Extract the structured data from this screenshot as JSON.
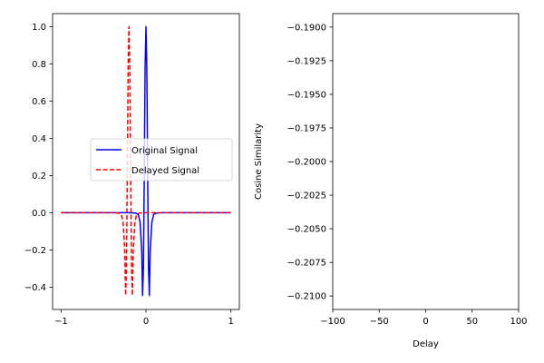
{
  "chart_data": [
    {
      "type": "line",
      "title": "",
      "xlabel": "",
      "ylabel": "",
      "xlim": [
        -1.1,
        1.1
      ],
      "ylim": [
        -0.52,
        1.07
      ],
      "xticks": [
        -1,
        0,
        1
      ],
      "xtick_labels": [
        "−1",
        "0",
        "1"
      ],
      "yticks": [
        -0.4,
        -0.2,
        0.0,
        0.2,
        0.4,
        0.6,
        0.8,
        1.0
      ],
      "ytick_labels": [
        "−0.4",
        "−0.2",
        "0.0",
        "0.2",
        "0.4",
        "0.6",
        "0.8",
        "1.0"
      ],
      "legend": {
        "location": "center-right"
      },
      "series": [
        {
          "name": "Original Signal",
          "color": "#0000ff",
          "linestyle": "solid",
          "x": [
            -1.0,
            -0.2,
            -0.12,
            -0.09,
            -0.07,
            -0.05,
            -0.04,
            -0.03,
            -0.02,
            -0.01,
            0.0,
            0.01,
            0.02,
            0.03,
            0.04,
            0.05,
            0.07,
            0.09,
            0.12,
            0.2,
            1.0
          ],
          "y": [
            0.0,
            0.0,
            -0.002,
            -0.01,
            -0.05,
            -0.2,
            -0.445,
            -0.3,
            0.2,
            0.78,
            1.0,
            0.78,
            0.2,
            -0.3,
            -0.445,
            -0.2,
            -0.05,
            -0.01,
            -0.002,
            0.0,
            0.0
          ]
        },
        {
          "name": "Delayed Signal",
          "color": "#ff0000",
          "linestyle": "dashed",
          "x": [
            -1.0,
            -0.4,
            -0.32,
            -0.29,
            -0.27,
            -0.25,
            -0.24,
            -0.23,
            -0.22,
            -0.21,
            -0.2,
            -0.19,
            -0.18,
            -0.17,
            -0.16,
            -0.15,
            -0.13,
            -0.11,
            -0.08,
            0.0,
            1.0
          ],
          "y": [
            0.0,
            0.0,
            -0.002,
            -0.01,
            -0.05,
            -0.2,
            -0.445,
            -0.3,
            0.2,
            0.78,
            1.0,
            0.78,
            0.2,
            -0.3,
            -0.445,
            -0.2,
            -0.05,
            -0.01,
            -0.002,
            0.0,
            0.0
          ]
        }
      ]
    },
    {
      "type": "line",
      "title": "",
      "xlabel": "Delay",
      "ylabel": "Cosine Similarity",
      "xlim": [
        -100,
        100
      ],
      "ylim": [
        -0.211,
        -0.189
      ],
      "xticks": [
        -100,
        -50,
        0,
        50,
        100
      ],
      "xtick_labels": [
        "−100",
        "−50",
        "0",
        "50",
        "100"
      ],
      "yticks": [
        -0.21,
        -0.2075,
        -0.205,
        -0.2025,
        -0.2,
        -0.1975,
        -0.195,
        -0.1925,
        -0.19
      ],
      "ytick_labels": [
        "−0.2100",
        "−0.2075",
        "−0.2050",
        "−0.2025",
        "−0.2000",
        "−0.1975",
        "−0.1950",
        "−0.1925",
        "−0.1900"
      ],
      "series": []
    }
  ]
}
